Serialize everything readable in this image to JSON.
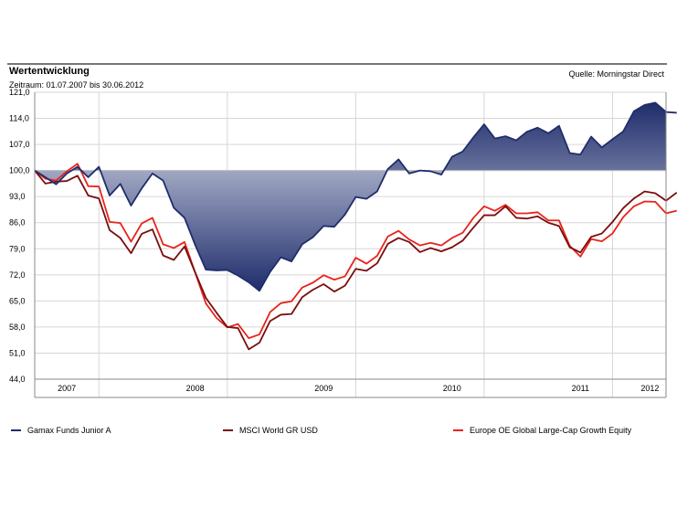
{
  "header": {
    "title": "Wertentwicklung",
    "source": "Quelle: Morningstar Direct",
    "period_label": "Zeitraum: 01.07.2007 bis 30.06.2012"
  },
  "colors": {
    "fund": "#1f2d6b",
    "msci": "#7a0d0d",
    "europe": "#e8231b",
    "fill_dark": "#1f2d6b",
    "fill_light": "#e9ecf5",
    "axis": "#888888",
    "grid": "#d6d6d6"
  },
  "chart_data": {
    "type": "line",
    "baseline": 100,
    "ylim": [
      44,
      121
    ],
    "y_ticks": [
      "121,0",
      "114,0",
      "107,0",
      "100,0",
      "93,0",
      "86,0",
      "79,0",
      "72,0",
      "65,0",
      "58,0",
      "51,0",
      "44,0"
    ],
    "x_tick_labels": [
      "2007",
      "2008",
      "2009",
      "2010",
      "2011",
      "2012"
    ],
    "x_label_months": [
      3,
      15,
      27,
      39,
      51,
      57.5
    ],
    "x_grid_months": [
      6,
      18,
      30,
      42,
      54
    ],
    "x_months_total": 59,
    "series": [
      {
        "name": "Gamax Funds Junior A",
        "color_key": "fund",
        "values": [
          100.0,
          98.2,
          96.3,
          99.2,
          101.0,
          98.2,
          101.0,
          93.3,
          96.4,
          90.6,
          95.2,
          99.2,
          97.3,
          90.0,
          87.3,
          80.0,
          73.4,
          73.2,
          73.3,
          71.8,
          70.0,
          67.7,
          72.8,
          76.7,
          75.6,
          80.2,
          82.1,
          85.1,
          84.9,
          88.2,
          92.9,
          92.4,
          94.4,
          100.4,
          103.0,
          99.2,
          100.0,
          99.8,
          98.9,
          103.7,
          105.1,
          108.9,
          112.4,
          108.6,
          109.2,
          108.1,
          110.4,
          111.5,
          110.0,
          112.0,
          104.7,
          104.3,
          109.1,
          106.2,
          108.4,
          110.5,
          115.9,
          117.6,
          118.2,
          115.7,
          115.5
        ]
      },
      {
        "name": "MSCI World GR USD",
        "color_key": "msci",
        "values": [
          100.0,
          96.5,
          97.0,
          97.2,
          98.6,
          93.3,
          92.5,
          84.0,
          81.9,
          77.8,
          83.0,
          84.2,
          77.2,
          76.0,
          79.6,
          72.6,
          65.8,
          61.8,
          58.0,
          57.7,
          52.0,
          53.8,
          59.6,
          61.3,
          61.5,
          66.0,
          68.0,
          69.5,
          67.5,
          69.1,
          73.6,
          73.1,
          75.1,
          80.3,
          81.9,
          80.8,
          78.1,
          79.2,
          78.3,
          79.4,
          81.2,
          84.7,
          88.0,
          88.0,
          90.4,
          87.3,
          87.1,
          87.7,
          86.0,
          85.1,
          79.4,
          78.0,
          82.2,
          83.1,
          86.2,
          89.9,
          92.5,
          94.4,
          93.9,
          91.9,
          94.1
        ]
      },
      {
        "name": "Europe OE Global Large-Cap Growth Equity",
        "color_key": "europe",
        "values": [
          100.0,
          97.8,
          97.3,
          99.8,
          101.8,
          95.8,
          95.7,
          86.2,
          85.9,
          80.9,
          85.8,
          87.3,
          80.2,
          79.2,
          80.8,
          72.6,
          64.3,
          60.4,
          57.9,
          58.8,
          55.0,
          56.0,
          62.0,
          64.4,
          64.9,
          68.6,
          69.9,
          71.9,
          70.7,
          71.6,
          76.6,
          75.0,
          77.1,
          82.3,
          83.8,
          81.5,
          79.9,
          80.6,
          79.9,
          81.9,
          83.3,
          87.3,
          90.4,
          89.2,
          90.8,
          88.5,
          88.5,
          88.8,
          86.6,
          86.6,
          79.8,
          76.9,
          81.6,
          81.0,
          83.1,
          87.5,
          90.4,
          91.7,
          91.6,
          88.5,
          89.2
        ]
      }
    ]
  }
}
